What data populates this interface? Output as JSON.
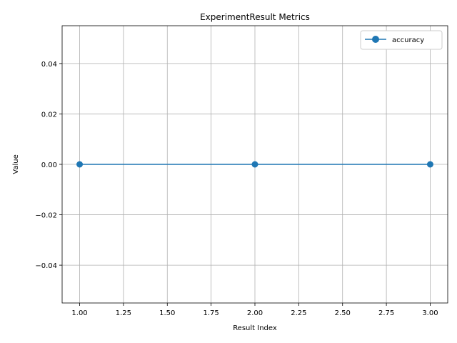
{
  "chart_data": {
    "type": "line",
    "title": "ExperimentResult Metrics",
    "xlabel": "Result Index",
    "ylabel": "Value",
    "xlim": [
      0.9,
      3.1
    ],
    "ylim": [
      -0.055,
      0.055
    ],
    "xticks": [
      1.0,
      1.25,
      1.5,
      1.75,
      2.0,
      2.25,
      2.5,
      2.75,
      3.0
    ],
    "xtick_labels": [
      "1.00",
      "1.25",
      "1.50",
      "1.75",
      "2.00",
      "2.25",
      "2.50",
      "2.75",
      "3.00"
    ],
    "yticks": [
      -0.04,
      -0.02,
      0.0,
      0.02,
      0.04
    ],
    "ytick_labels": [
      "−0.04",
      "−0.02",
      "0.00",
      "0.02",
      "0.04"
    ],
    "grid": true,
    "legend_position": "top-right",
    "series": [
      {
        "name": "accuracy",
        "color": "#1f77b4",
        "marker": "circle",
        "x": [
          1.0,
          2.0,
          3.0
        ],
        "values": [
          0.0,
          0.0,
          0.0
        ]
      }
    ]
  }
}
